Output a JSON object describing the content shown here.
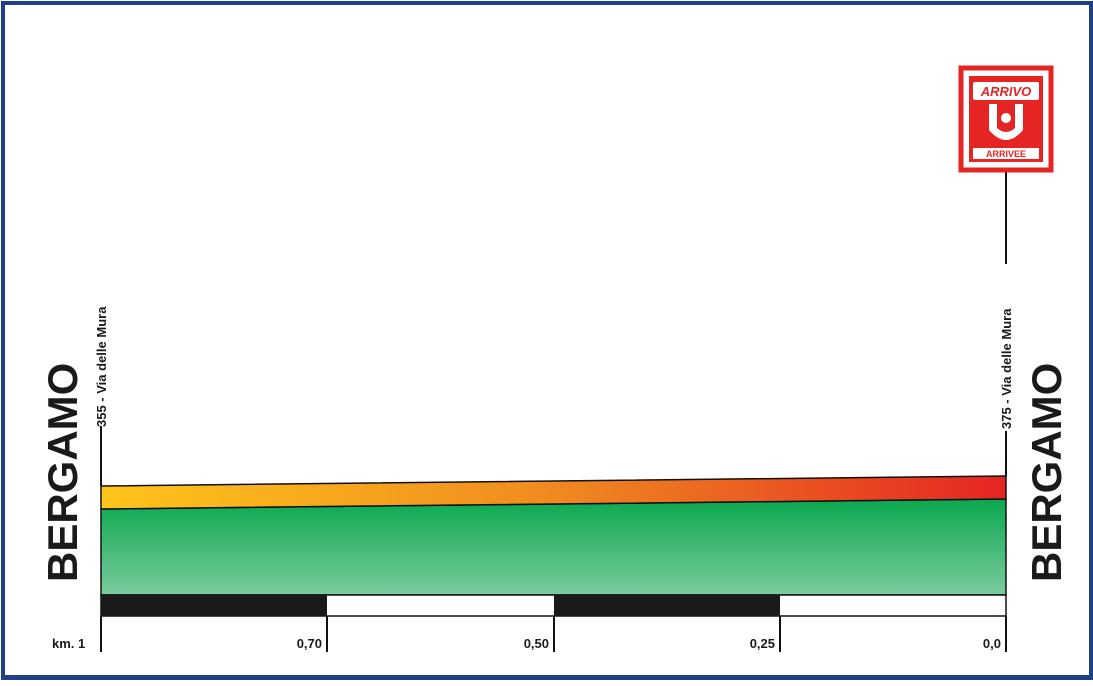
{
  "start": {
    "place": "BERGAMO",
    "altitude_label": "355 - Via delle Mura",
    "altitude_m": 355
  },
  "finish": {
    "place": "BERGAMO",
    "altitude_label": "375 - Via delle Mura",
    "altitude_m": 375,
    "logo": {
      "top_text": "ARRIVO",
      "bottom_text": "ARRIVEE"
    }
  },
  "distance_scale": {
    "labels": [
      "km. 1",
      "0,70",
      "0,50",
      "0,25",
      "0,0"
    ],
    "km_values": [
      1,
      0.7,
      0.5,
      0.25,
      0
    ]
  },
  "colors": {
    "frame": "#1f3f86",
    "profile_fill_top": "#0aa84f",
    "profile_fill_bottom": "#7ccb9e",
    "gradient_start": "#ffc51a",
    "gradient_mid": "#f08a20",
    "gradient_end": "#e52523",
    "logo_red": "#e52523"
  }
}
